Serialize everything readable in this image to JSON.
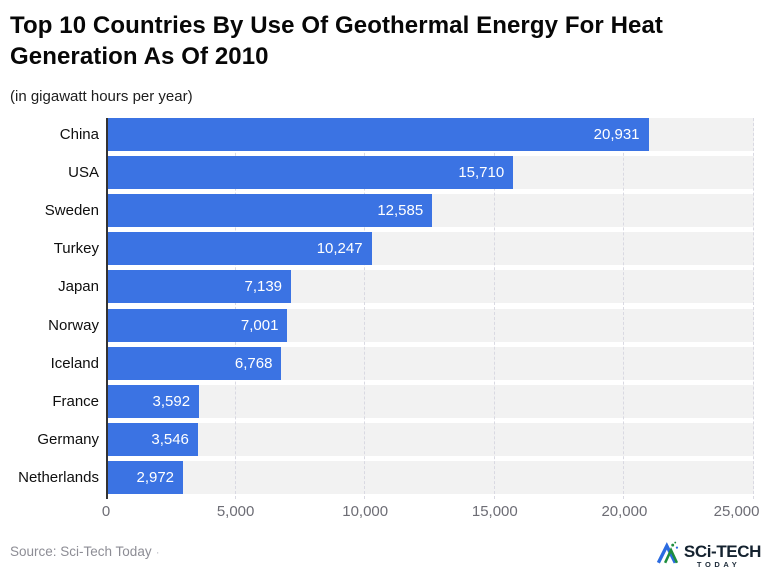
{
  "header": {
    "title": "Top 10 Countries By Use Of Geothermal Energy For Heat Generation As Of 2010",
    "subtitle": "(in gigawatt hours per year)"
  },
  "chart_data": {
    "type": "bar",
    "orientation": "horizontal",
    "title": "Top 10 Countries By Use Of Geothermal Energy For Heat Generation As Of 2010",
    "subtitle": "(in gigawatt hours per year)",
    "unit": "gigawatt hours per year",
    "categories": [
      "China",
      "USA",
      "Sweden",
      "Turkey",
      "Japan",
      "Norway",
      "Iceland",
      "France",
      "Germany",
      "Netherlands"
    ],
    "values": [
      20931,
      15710,
      12585,
      10247,
      7139,
      7001,
      6768,
      3592,
      3546,
      2972
    ],
    "value_labels": [
      "20,931",
      "15,710",
      "12,585",
      "10,247",
      "7,139",
      "7,001",
      "6,768",
      "3,592",
      "3,546",
      "2,972"
    ],
    "xlim": [
      0,
      25000
    ],
    "x_ticks": [
      {
        "value": 0,
        "label": "0"
      },
      {
        "value": 5000,
        "label": "5,000"
      },
      {
        "value": 10000,
        "label": "10,000"
      },
      {
        "value": 15000,
        "label": "15,000"
      },
      {
        "value": 20000,
        "label": "20,000"
      },
      {
        "value": 25000,
        "label": "25,000"
      }
    ],
    "grid": true,
    "legend": "none",
    "colors": {
      "bar": "#3b73e3",
      "row_band": "#f2f2f2",
      "gridline": "#d9d9e2",
      "axis_line": "#333333",
      "value_label": "#ffffff",
      "tick_label": "#6d6d75"
    }
  },
  "footer": {
    "source": "Source: Sci-Tech Today",
    "separator": "·",
    "logo": {
      "name": "Sci-Tech Today logo",
      "line1": "SCi-TECH",
      "line2": "TODAY",
      "colors": {
        "text": "#14222f",
        "blue": "#2b6be0",
        "green": "#1e8e3e"
      }
    }
  }
}
